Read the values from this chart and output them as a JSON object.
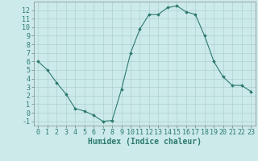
{
  "x": [
    0,
    1,
    2,
    3,
    4,
    5,
    6,
    7,
    8,
    9,
    10,
    11,
    12,
    13,
    14,
    15,
    16,
    17,
    18,
    19,
    20,
    21,
    22,
    23
  ],
  "y": [
    6,
    5,
    3.5,
    2.2,
    0.5,
    0.2,
    -0.3,
    -1.0,
    -0.9,
    2.7,
    7.0,
    9.8,
    11.5,
    11.5,
    12.3,
    12.5,
    11.8,
    11.5,
    9.0,
    6.0,
    4.2,
    3.2,
    3.2,
    2.5
  ],
  "line_color": "#2d7a6e",
  "marker": "D",
  "marker_size": 1.8,
  "bg_color": "#cceaea",
  "grid_color": "#b0d0d0",
  "xlabel": "Humidex (Indice chaleur)",
  "xlabel_fontsize": 7,
  "tick_fontsize": 6,
  "ylim": [
    -1.5,
    13.0
  ],
  "xlim": [
    -0.5,
    23.5
  ],
  "yticks": [
    -1,
    0,
    1,
    2,
    3,
    4,
    5,
    6,
    7,
    8,
    9,
    10,
    11,
    12
  ],
  "xticks": [
    0,
    1,
    2,
    3,
    4,
    5,
    6,
    7,
    8,
    9,
    10,
    11,
    12,
    13,
    14,
    15,
    16,
    17,
    18,
    19,
    20,
    21,
    22,
    23
  ]
}
